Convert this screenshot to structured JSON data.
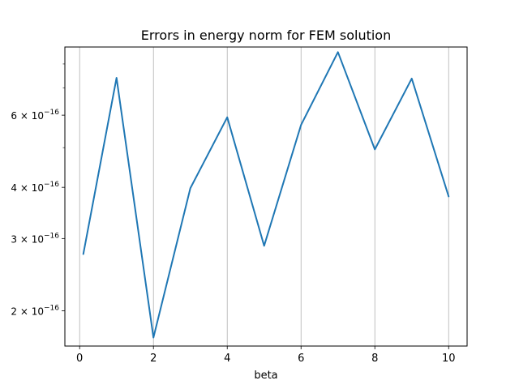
{
  "chart_data": {
    "type": "line",
    "title": "Errors in energy norm for FEM solution",
    "xlabel": "beta",
    "ylabel": "",
    "x_scale": "linear",
    "y_scale": "log",
    "xlim": [
      -0.4,
      10.5
    ],
    "ylim": [
      1.64e-16,
      8.8e-16
    ],
    "grid": "vertical major gridlines only",
    "x_ticks": [
      0,
      2,
      4,
      6,
      8,
      10
    ],
    "x_tick_labels": [
      "0",
      "2",
      "4",
      "6",
      "8",
      "10"
    ],
    "y_ticks": [
      2e-16,
      3e-16,
      4e-16,
      6e-16
    ],
    "y_tick_labels": [
      {
        "mantissa": "2",
        "base": "10",
        "exp": "−16"
      },
      {
        "mantissa": "3",
        "base": "10",
        "exp": "−16"
      },
      {
        "mantissa": "4",
        "base": "10",
        "exp": "−16"
      },
      {
        "mantissa": "6",
        "base": "10",
        "exp": "−16"
      }
    ],
    "y_minor_ticks": [
      5e-16,
      7e-16,
      8e-16
    ],
    "line_color": "#1f77b4",
    "series": [
      {
        "x": [
          0.1,
          1,
          2,
          3,
          4,
          5,
          6,
          7,
          8,
          9,
          10
        ],
        "y": [
          2.75e-16,
          7.4e-16,
          1.72e-16,
          3.98e-16,
          5.93e-16,
          2.88e-16,
          5.68e-16,
          8.55e-16,
          4.95e-16,
          7.37e-16,
          3.8e-16
        ]
      }
    ]
  }
}
